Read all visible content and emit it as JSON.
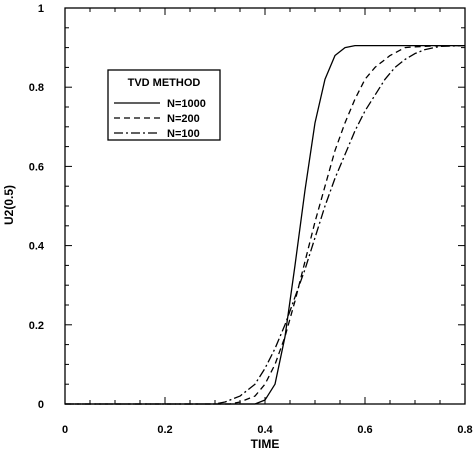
{
  "chart_data": {
    "type": "line",
    "title": "",
    "xlabel": "TIME",
    "ylabel": "U2(0.5)",
    "xlim": [
      0,
      0.8
    ],
    "ylim": [
      0,
      1
    ],
    "xticks": [
      0,
      0.2,
      0.4,
      0.6,
      0.8
    ],
    "xtick_labels": [
      "0",
      "0.2",
      "0.4",
      "0.6",
      "0.8"
    ],
    "x_minor_step": 0.05,
    "yticks": [
      0,
      0.2,
      0.4,
      0.6,
      0.8,
      1
    ],
    "ytick_labels": [
      "0",
      "0.2",
      "0.4",
      "0.6",
      "0.8",
      "1"
    ],
    "y_minor_step": 0.05,
    "grid": false,
    "legend": {
      "placement": "upper-left",
      "title": "TVD METHOD",
      "entries": [
        "N=1000",
        "N=200",
        "N=100"
      ]
    },
    "series": [
      {
        "name": "N=1000",
        "style": "solid",
        "x": [
          0,
          0.38,
          0.4,
          0.42,
          0.44,
          0.46,
          0.48,
          0.5,
          0.52,
          0.54,
          0.56,
          0.58,
          0.6,
          0.65,
          0.7,
          0.8
        ],
        "y": [
          0,
          0,
          0.01,
          0.05,
          0.17,
          0.35,
          0.54,
          0.71,
          0.82,
          0.88,
          0.9,
          0.905,
          0.905,
          0.905,
          0.905,
          0.905
        ]
      },
      {
        "name": "N=200",
        "style": "dashed",
        "x": [
          0,
          0.33,
          0.35,
          0.38,
          0.4,
          0.42,
          0.44,
          0.46,
          0.48,
          0.5,
          0.52,
          0.54,
          0.56,
          0.58,
          0.6,
          0.62,
          0.65,
          0.68,
          0.7,
          0.75,
          0.8
        ],
        "y": [
          0,
          0,
          0.005,
          0.02,
          0.05,
          0.1,
          0.17,
          0.26,
          0.36,
          0.46,
          0.55,
          0.64,
          0.71,
          0.77,
          0.82,
          0.85,
          0.88,
          0.9,
          0.902,
          0.905,
          0.905
        ]
      },
      {
        "name": "N=100",
        "style": "dashdot",
        "x": [
          0,
          0.3,
          0.32,
          0.35,
          0.38,
          0.4,
          0.42,
          0.44,
          0.46,
          0.48,
          0.5,
          0.52,
          0.54,
          0.56,
          0.58,
          0.6,
          0.62,
          0.64,
          0.66,
          0.68,
          0.7,
          0.72,
          0.75,
          0.8
        ],
        "y": [
          0,
          0,
          0.005,
          0.02,
          0.05,
          0.09,
          0.14,
          0.2,
          0.27,
          0.34,
          0.42,
          0.5,
          0.57,
          0.63,
          0.69,
          0.74,
          0.78,
          0.82,
          0.85,
          0.87,
          0.885,
          0.895,
          0.903,
          0.905
        ]
      }
    ]
  }
}
